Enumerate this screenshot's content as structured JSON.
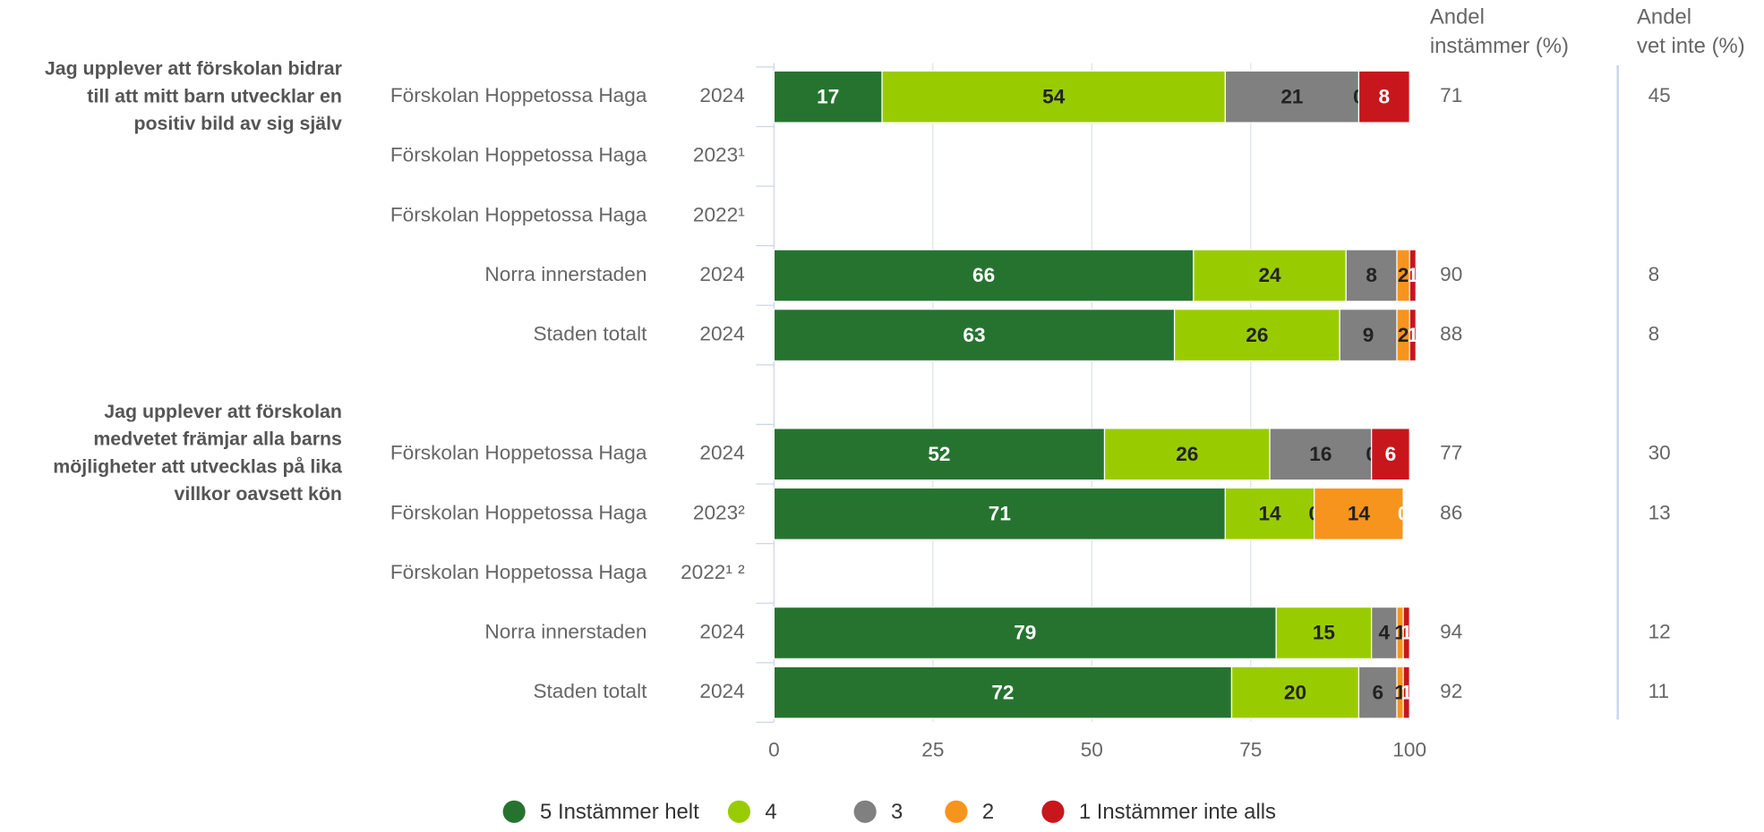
{
  "chart_data": {
    "type": "stacked-bar-horizontal",
    "questions": [
      [
        "Jag upplever att förskolan bidrar",
        "till att mitt barn utvecklar en",
        "positiv bild av sig själv"
      ],
      [
        "Jag upplever att förskolan",
        "medvetet främjar alla barns",
        "möjligheter att utvecklas på lika",
        "villkor oavsett kön"
      ]
    ],
    "categories": [
      "Förskolan Hoppetossa Haga",
      "Förskolan Hoppetossa Haga",
      "Förskolan Hoppetossa Haga",
      "Norra innerstaden",
      "Staden totalt",
      "Förskolan Hoppetossa Haga",
      "Förskolan Hoppetossa Haga",
      "Förskolan Hoppetossa Haga",
      "Norra innerstaden",
      "Staden totalt"
    ],
    "years": [
      "2024",
      "2023¹",
      "2022¹",
      "2024",
      "2024",
      "2024",
      "2023²",
      "2022¹ ²",
      "2024",
      "2024"
    ],
    "series": [
      {
        "name": "5 Instämmer helt",
        "color": "#267330",
        "label_color": "#ffffff",
        "values": [
          17,
          null,
          null,
          66,
          63,
          52,
          71,
          null,
          79,
          72
        ]
      },
      {
        "name": "4",
        "color": "#99cc00",
        "label_color": "#222222",
        "values": [
          54,
          null,
          null,
          24,
          26,
          26,
          14,
          null,
          15,
          20
        ]
      },
      {
        "name": "3",
        "color": "#808080",
        "label_color": "#222222",
        "values": [
          21,
          null,
          null,
          8,
          9,
          16,
          0,
          null,
          4,
          6
        ]
      },
      {
        "name": "2",
        "color": "#f7941d",
        "label_color": "#222222",
        "values": [
          0,
          null,
          null,
          2,
          2,
          0,
          14,
          null,
          1,
          1
        ]
      },
      {
        "name": "1 Instämmer inte alls",
        "color": "#c8161d",
        "label_color": "#ffffff",
        "values": [
          8,
          null,
          null,
          1,
          1,
          6,
          0,
          null,
          1,
          1
        ]
      }
    ],
    "columns": [
      {
        "title": [
          "Andel",
          "instämmer (%)"
        ],
        "values": [
          71,
          null,
          null,
          90,
          88,
          77,
          86,
          null,
          94,
          92
        ]
      },
      {
        "title": [
          "Andel",
          "vet inte (%)"
        ],
        "values": [
          45,
          null,
          null,
          8,
          8,
          30,
          13,
          null,
          12,
          11
        ]
      }
    ],
    "xlim": [
      0,
      100
    ],
    "xticks": [
      0,
      25,
      50,
      75,
      100
    ],
    "grid": true
  }
}
